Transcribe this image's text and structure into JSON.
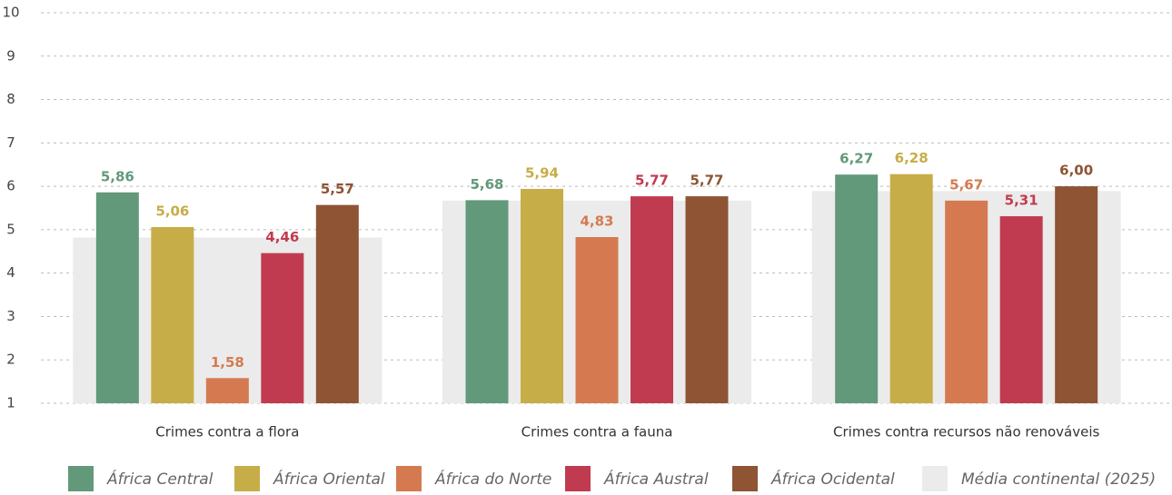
{
  "chart_data": {
    "type": "bar",
    "categories": [
      "Crimes contra a flora",
      "Crimes contra a fauna",
      "Crimes contra recursos não renováveis"
    ],
    "background_series": {
      "name": "Média continental (2025)",
      "color": "#ebebeb",
      "values": [
        4.82,
        5.67,
        5.89
      ]
    },
    "series": [
      {
        "name": "África Central",
        "color": "#62997a",
        "values": [
          5.86,
          5.68,
          6.27
        ],
        "value_labels": [
          "5,86",
          "5,68",
          "6,27"
        ]
      },
      {
        "name": "África Oriental",
        "color": "#c7ad47",
        "values": [
          5.06,
          5.94,
          6.28
        ],
        "value_labels": [
          "5,06",
          "5,94",
          "6,28"
        ]
      },
      {
        "name": "África do Norte",
        "color": "#d57a50",
        "values": [
          1.58,
          4.83,
          5.67
        ],
        "value_labels": [
          "1,58",
          "4,83",
          "5,67"
        ]
      },
      {
        "name": "África Austral",
        "color": "#c13b50",
        "values": [
          4.46,
          5.77,
          5.31
        ],
        "value_labels": [
          "4,46",
          "5,77",
          "5,31"
        ]
      },
      {
        "name": "África Ocidental",
        "color": "#8e5434",
        "values": [
          5.57,
          5.77,
          6.0
        ],
        "value_labels": [
          "5,57",
          "5,77",
          "6,00"
        ]
      }
    ],
    "ylim": [
      1,
      10
    ],
    "yticks": [
      1,
      2,
      3,
      4,
      5,
      6,
      7,
      8,
      9,
      10
    ],
    "grid": true
  }
}
